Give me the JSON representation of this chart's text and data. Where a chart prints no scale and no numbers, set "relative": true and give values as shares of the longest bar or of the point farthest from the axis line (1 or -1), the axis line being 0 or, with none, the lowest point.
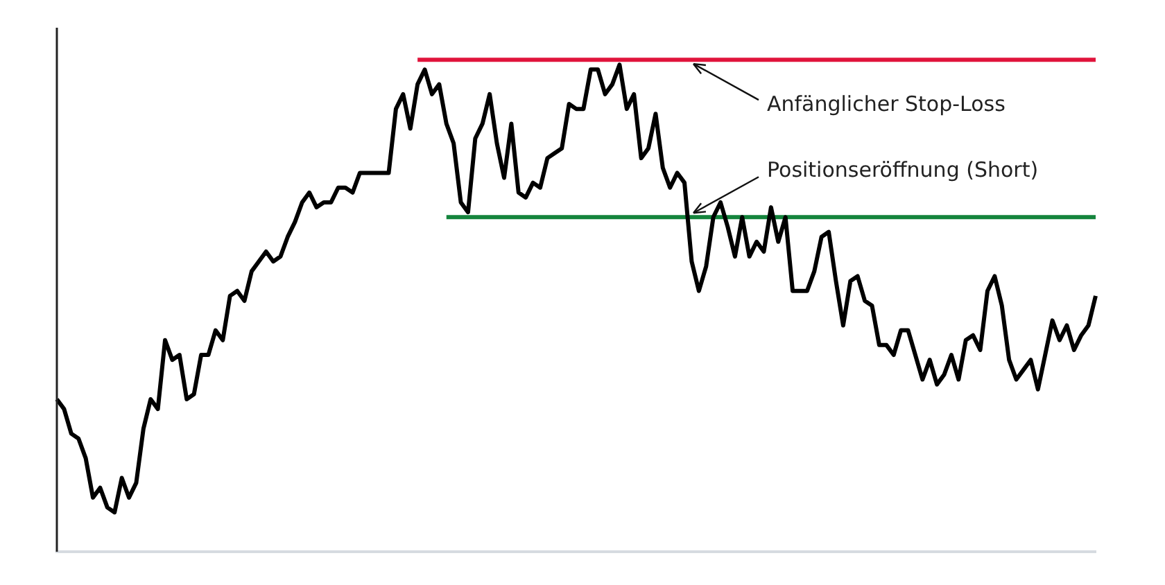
{
  "chart_data": {
    "type": "line",
    "relative": true,
    "categories": [
      null,
      null,
      null,
      null,
      null,
      null,
      null,
      null,
      null,
      null,
      null,
      null,
      null,
      null,
      null,
      null,
      null,
      null,
      null,
      null,
      null,
      null,
      null,
      null,
      null,
      null,
      null,
      null,
      null,
      null,
      null,
      null,
      null,
      null,
      null,
      null,
      null,
      null,
      null,
      null,
      null,
      null,
      null,
      null,
      null,
      null,
      null,
      null,
      null,
      null,
      null,
      null,
      null,
      null,
      null,
      null,
      null,
      null,
      null,
      null,
      null,
      null,
      null,
      null,
      null,
      null,
      null,
      null,
      null,
      null,
      null,
      null,
      null,
      null,
      null,
      null,
      null,
      null,
      null,
      null,
      null,
      null,
      null,
      null,
      null,
      null,
      null,
      null,
      null,
      null,
      null,
      null,
      null,
      null,
      null,
      null,
      null,
      null,
      null,
      null,
      null,
      null,
      null,
      null,
      null,
      null,
      null,
      null,
      null,
      null,
      null,
      null,
      null,
      null,
      null,
      null,
      null,
      null,
      null,
      null,
      null,
      null,
      null,
      null,
      null,
      null,
      null,
      null,
      null,
      null,
      null,
      null,
      null,
      null,
      null,
      null,
      null,
      null,
      null,
      null,
      null,
      null,
      null,
      null,
      null
    ],
    "series": [
      {
        "color": "#000000",
        "values": [
          0.31,
          0.29,
          0.24,
          0.23,
          0.19,
          0.11,
          0.13,
          0.09,
          0.08,
          0.15,
          0.11,
          0.14,
          0.25,
          0.31,
          0.29,
          0.43,
          0.39,
          0.4,
          0.31,
          0.32,
          0.4,
          0.4,
          0.45,
          0.43,
          0.52,
          0.53,
          0.51,
          0.57,
          0.59,
          0.61,
          0.59,
          0.6,
          0.64,
          0.67,
          0.71,
          0.73,
          0.7,
          0.71,
          0.71,
          0.74,
          0.74,
          0.73,
          0.77,
          0.77,
          0.77,
          0.77,
          0.77,
          0.9,
          0.93,
          0.86,
          0.95,
          0.98,
          0.93,
          0.95,
          0.87,
          0.83,
          0.71,
          0.69,
          0.84,
          0.87,
          0.93,
          0.83,
          0.76,
          0.87,
          0.73,
          0.72,
          0.75,
          0.74,
          0.8,
          0.81,
          0.82,
          0.91,
          0.9,
          0.9,
          0.98,
          0.98,
          0.93,
          0.95,
          0.99,
          0.9,
          0.93,
          0.8,
          0.82,
          0.89,
          0.78,
          0.74,
          0.77,
          0.75,
          0.59,
          0.53,
          0.58,
          0.68,
          0.71,
          0.66,
          0.6,
          0.68,
          0.6,
          0.63,
          0.61,
          0.7,
          0.63,
          0.68,
          0.53,
          0.53,
          0.53,
          0.57,
          0.64,
          0.65,
          0.55,
          0.46,
          0.55,
          0.56,
          0.51,
          0.5,
          0.42,
          0.42,
          0.4,
          0.45,
          0.45,
          0.4,
          0.35,
          0.39,
          0.34,
          0.36,
          0.4,
          0.35,
          0.43,
          0.44,
          0.41,
          0.53,
          0.56,
          0.5,
          0.39,
          0.35,
          0.37,
          0.39,
          0.33,
          0.4,
          0.47,
          0.43,
          0.46,
          0.41,
          0.44,
          0.46,
          0.52
        ]
      },
      {
        "color": "#e0143c",
        "values": [
          null,
          null,
          null,
          null,
          null,
          null,
          null,
          null,
          null,
          null,
          null,
          null,
          null,
          null,
          null,
          null,
          null,
          null,
          null,
          null,
          null,
          null,
          null,
          null,
          null,
          null,
          null,
          null,
          null,
          null,
          null,
          null,
          null,
          null,
          null,
          null,
          null,
          null,
          null,
          null,
          null,
          null,
          null,
          null,
          null,
          null,
          null,
          null,
          null,
          null,
          1,
          1,
          1,
          1,
          1,
          1,
          1,
          1,
          1,
          1,
          1,
          1,
          1,
          1,
          1,
          1,
          1,
          1,
          1,
          1,
          1,
          1,
          1,
          1,
          1,
          1,
          1,
          1,
          1,
          1,
          1,
          1,
          1,
          1,
          1,
          1,
          1,
          1,
          1,
          1,
          1,
          1,
          1,
          1,
          1,
          1,
          1,
          1,
          1,
          1,
          1,
          1,
          1,
          1,
          1,
          1,
          1,
          1,
          1,
          1,
          1,
          1,
          1,
          1,
          1,
          1,
          1,
          1,
          1,
          1,
          1,
          1,
          1,
          1,
          1,
          1,
          1,
          1,
          1,
          1,
          1,
          1,
          1,
          1,
          1,
          1,
          1,
          1,
          1,
          1,
          1,
          1,
          1,
          1,
          1
        ]
      },
      {
        "color": "#14843c",
        "values": [
          null,
          null,
          null,
          null,
          null,
          null,
          null,
          null,
          null,
          null,
          null,
          null,
          null,
          null,
          null,
          null,
          null,
          null,
          null,
          null,
          null,
          null,
          null,
          null,
          null,
          null,
          null,
          null,
          null,
          null,
          null,
          null,
          null,
          null,
          null,
          null,
          null,
          null,
          null,
          null,
          null,
          null,
          null,
          null,
          null,
          null,
          null,
          null,
          null,
          null,
          null,
          null,
          null,
          null,
          0.68,
          0.68,
          0.68,
          0.68,
          0.68,
          0.68,
          0.68,
          0.68,
          0.68,
          0.68,
          0.68,
          0.68,
          0.68,
          0.68,
          0.68,
          0.68,
          0.68,
          0.68,
          0.68,
          0.68,
          0.68,
          0.68,
          0.68,
          0.68,
          0.68,
          0.68,
          0.68,
          0.68,
          0.68,
          0.68,
          0.68,
          0.68,
          0.68,
          0.68,
          0.68,
          0.68,
          0.68,
          0.68,
          0.68,
          0.68,
          0.68,
          0.68,
          0.68,
          0.68,
          0.68,
          0.68,
          0.68,
          0.68,
          0.68,
          0.68,
          0.68,
          0.68,
          0.68,
          0.68,
          0.68,
          0.68,
          0.68,
          0.68,
          0.68,
          0.68,
          0.68,
          0.68,
          0.68,
          0.68,
          0.68,
          0.68,
          0.68,
          0.68,
          0.68,
          0.68,
          0.68,
          0.68,
          0.68,
          0.68,
          0.68,
          0.68,
          0.68,
          0.68,
          0.68,
          0.68,
          0.68,
          0.68,
          0.68,
          0.68,
          0.68,
          0.68,
          0.68,
          0.68,
          0.68,
          0.68,
          0.68
        ]
      }
    ],
    "annotations": [
      "Anfänglicher Stop-Loss",
      "Positionseröffnung (Short)"
    ],
    "grid": false,
    "legend": false,
    "marker": "none",
    "line_style": "solid"
  }
}
